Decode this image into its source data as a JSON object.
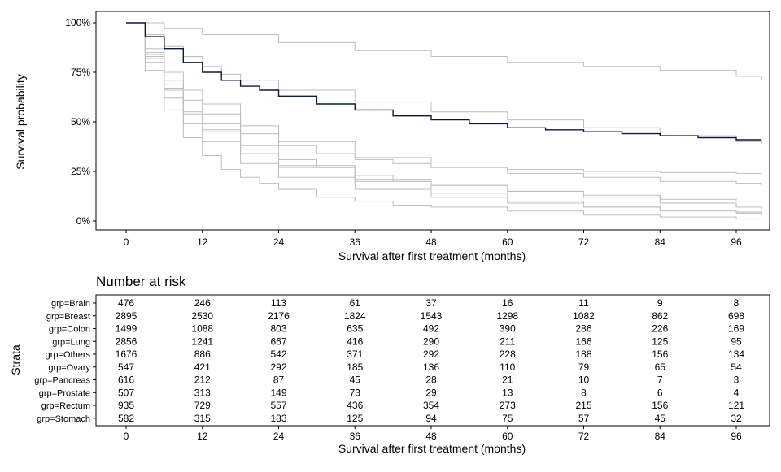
{
  "chart_data": [
    {
      "type": "line",
      "ylabel": "Survival probability",
      "xlabel": "Survival after first treatment (months)",
      "x_ticks": [
        "0",
        "12",
        "24",
        "36",
        "48",
        "60",
        "72",
        "84",
        "96"
      ],
      "y_ticks": [
        "0%",
        "25%",
        "50%",
        "75%",
        "100%"
      ],
      "xlim": [
        0,
        100
      ],
      "ylim": [
        0,
        1
      ],
      "grid": false,
      "highlight_color": "#0b1a3a",
      "background_color": "#bdbdbd",
      "series": [
        {
          "highlight": true,
          "x": [
            0,
            3,
            6,
            9,
            12,
            15,
            18,
            21,
            24,
            30,
            36,
            42,
            48,
            54,
            60,
            66,
            72,
            78,
            84,
            90,
            96,
            100
          ],
          "y": [
            1.0,
            0.93,
            0.87,
            0.8,
            0.75,
            0.71,
            0.68,
            0.66,
            0.63,
            0.59,
            0.56,
            0.53,
            0.51,
            0.49,
            0.47,
            0.46,
            0.45,
            0.44,
            0.43,
            0.42,
            0.41,
            0.41
          ]
        },
        {
          "highlight": false,
          "x": [
            0,
            6,
            12,
            24,
            36,
            48,
            60,
            72,
            84,
            96,
            100
          ],
          "y": [
            1.0,
            0.97,
            0.94,
            0.9,
            0.86,
            0.83,
            0.8,
            0.78,
            0.76,
            0.73,
            0.71
          ]
        },
        {
          "highlight": false,
          "x": [
            0,
            3,
            6,
            9,
            12,
            15,
            18,
            24,
            36,
            48,
            60,
            72,
            84,
            96,
            100
          ],
          "y": [
            1.0,
            0.94,
            0.88,
            0.83,
            0.78,
            0.74,
            0.71,
            0.66,
            0.6,
            0.55,
            0.51,
            0.47,
            0.43,
            0.4,
            0.39
          ]
        },
        {
          "highlight": false,
          "x": [
            0,
            3,
            6,
            9,
            12,
            18,
            24,
            30,
            36,
            42,
            48,
            60,
            72,
            84,
            96,
            100
          ],
          "y": [
            1.0,
            0.85,
            0.71,
            0.61,
            0.54,
            0.44,
            0.38,
            0.34,
            0.31,
            0.29,
            0.27,
            0.26,
            0.25,
            0.245,
            0.24,
            0.24
          ]
        },
        {
          "highlight": false,
          "x": [
            0,
            3,
            6,
            9,
            12,
            18,
            24,
            36,
            48,
            60,
            72,
            84,
            96,
            100
          ],
          "y": [
            1.0,
            0.87,
            0.75,
            0.66,
            0.59,
            0.48,
            0.4,
            0.32,
            0.27,
            0.24,
            0.22,
            0.2,
            0.19,
            0.18
          ]
        },
        {
          "highlight": false,
          "x": [
            0,
            3,
            6,
            9,
            12,
            18,
            24,
            30,
            36,
            42,
            48,
            60,
            72,
            84,
            96,
            100
          ],
          "y": [
            1.0,
            0.84,
            0.69,
            0.58,
            0.49,
            0.38,
            0.31,
            0.27,
            0.23,
            0.2,
            0.18,
            0.15,
            0.13,
            0.11,
            0.1,
            0.1
          ]
        },
        {
          "highlight": false,
          "x": [
            0,
            3,
            6,
            9,
            12,
            18,
            24,
            36,
            48,
            60,
            72,
            84,
            96,
            100
          ],
          "y": [
            1.0,
            0.83,
            0.67,
            0.55,
            0.46,
            0.34,
            0.27,
            0.21,
            0.18,
            0.15,
            0.12,
            0.09,
            0.07,
            0.06
          ]
        },
        {
          "highlight": false,
          "x": [
            0,
            3,
            6,
            9,
            12,
            18,
            24,
            36,
            48,
            60,
            72,
            84,
            96,
            100
          ],
          "y": [
            1.0,
            0.82,
            0.66,
            0.54,
            0.45,
            0.34,
            0.28,
            0.2,
            0.14,
            0.1,
            0.07,
            0.05,
            0.04,
            0.03
          ]
        },
        {
          "highlight": false,
          "x": [
            0,
            3,
            6,
            9,
            12,
            18,
            24,
            36,
            48,
            60,
            72,
            84,
            96,
            100
          ],
          "y": [
            1.0,
            0.8,
            0.62,
            0.49,
            0.4,
            0.29,
            0.22,
            0.16,
            0.12,
            0.09,
            0.07,
            0.055,
            0.045,
            0.04
          ]
        },
        {
          "highlight": false,
          "x": [
            0,
            3,
            6,
            9,
            12,
            15,
            18,
            21,
            24,
            30,
            36,
            42,
            48,
            60,
            72,
            84,
            96,
            100
          ],
          "y": [
            1.0,
            0.76,
            0.56,
            0.42,
            0.33,
            0.26,
            0.22,
            0.19,
            0.16,
            0.12,
            0.1,
            0.08,
            0.07,
            0.05,
            0.03,
            0.02,
            0.01,
            0.01
          ]
        }
      ]
    },
    {
      "type": "table",
      "title": "Number at risk",
      "ylabel": "Strata",
      "xlabel": "Survival after first treatment (months)",
      "columns": [
        "0",
        "12",
        "24",
        "36",
        "48",
        "60",
        "72",
        "84",
        "96"
      ],
      "rows": [
        {
          "label": "grp=Brain",
          "values": [
            "476",
            "246",
            "113",
            "61",
            "37",
            "16",
            "11",
            "9",
            "8"
          ]
        },
        {
          "label": "grp=Breast",
          "values": [
            "2895",
            "2530",
            "2176",
            "1824",
            "1543",
            "1298",
            "1082",
            "862",
            "698"
          ]
        },
        {
          "label": "grp=Colon",
          "values": [
            "1499",
            "1088",
            "803",
            "635",
            "492",
            "390",
            "286",
            "226",
            "169"
          ]
        },
        {
          "label": "grp=Lung",
          "values": [
            "2856",
            "1241",
            "667",
            "416",
            "290",
            "211",
            "166",
            "125",
            "95"
          ]
        },
        {
          "label": "grp=Others",
          "values": [
            "1676",
            "886",
            "542",
            "371",
            "292",
            "228",
            "188",
            "156",
            "134"
          ]
        },
        {
          "label": "grp=Ovary",
          "values": [
            "547",
            "421",
            "292",
            "185",
            "136",
            "110",
            "79",
            "65",
            "54"
          ]
        },
        {
          "label": "grp=Pancreas",
          "values": [
            "616",
            "212",
            "87",
            "45",
            "28",
            "21",
            "10",
            "7",
            "3"
          ]
        },
        {
          "label": "grp=Prostate",
          "values": [
            "507",
            "313",
            "149",
            "73",
            "29",
            "13",
            "8",
            "6",
            "4"
          ]
        },
        {
          "label": "grp=Rectum",
          "values": [
            "935",
            "729",
            "557",
            "436",
            "354",
            "273",
            "215",
            "156",
            "121"
          ]
        },
        {
          "label": "grp=Stomach",
          "values": [
            "582",
            "315",
            "183",
            "125",
            "94",
            "75",
            "57",
            "45",
            "32"
          ]
        }
      ]
    }
  ]
}
